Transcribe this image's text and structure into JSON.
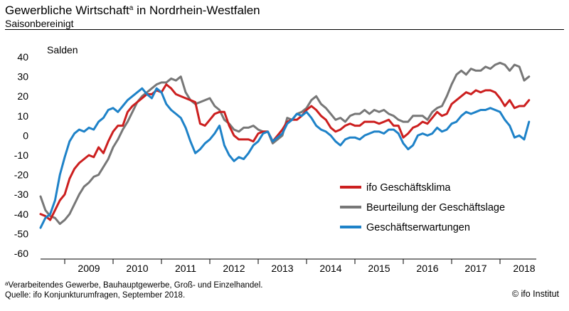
{
  "header": {
    "title": "Gewerbliche Wirtschaft",
    "title_sup": "a",
    "title_suffix": " in Nordrhein-Westfalen",
    "subtitle": "Saisonbereinigt"
  },
  "footer": {
    "note_marker": "a",
    "note": "Verarbeitendes Gewerbe, Bauhauptgewerbe, Groß- und Einzelhandel.",
    "source": "Quelle: ifo Konjunkturumfragen, September 2018.",
    "copyright": "© ifo Institut"
  },
  "chart_data": {
    "type": "line",
    "ylabel": "Salden",
    "ylim": [
      -60,
      40
    ],
    "yticks": [
      40,
      30,
      20,
      10,
      0,
      -10,
      -20,
      -30,
      -40,
      -50,
      -60
    ],
    "xlim": [
      2008.5,
      2018.75
    ],
    "xtick_labels": [
      "2009",
      "2010",
      "2011",
      "2012",
      "2013",
      "2014",
      "2015",
      "2016",
      "2017",
      "2018"
    ],
    "grid": false,
    "legend_position": "lower-right",
    "series": [
      {
        "name": "ifo Geschäftsklima",
        "color": "#cc1f1f",
        "points": [
          [
            2008.5,
            -40
          ],
          [
            2008.6,
            -41
          ],
          [
            2008.7,
            -43
          ],
          [
            2008.8,
            -38
          ],
          [
            2008.9,
            -33
          ],
          [
            2009.0,
            -30
          ],
          [
            2009.1,
            -22
          ],
          [
            2009.2,
            -17
          ],
          [
            2009.3,
            -14
          ],
          [
            2009.4,
            -12
          ],
          [
            2009.5,
            -10
          ],
          [
            2009.6,
            -11
          ],
          [
            2009.7,
            -6
          ],
          [
            2009.8,
            -9
          ],
          [
            2009.9,
            -3
          ],
          [
            2010.0,
            2
          ],
          [
            2010.1,
            5
          ],
          [
            2010.2,
            5
          ],
          [
            2010.3,
            12
          ],
          [
            2010.4,
            15
          ],
          [
            2010.5,
            17
          ],
          [
            2010.6,
            19
          ],
          [
            2010.7,
            21
          ],
          [
            2010.8,
            21
          ],
          [
            2010.9,
            23
          ],
          [
            2011.0,
            22
          ],
          [
            2011.1,
            26
          ],
          [
            2011.2,
            24
          ],
          [
            2011.3,
            21
          ],
          [
            2011.4,
            20
          ],
          [
            2011.5,
            19
          ],
          [
            2011.6,
            18
          ],
          [
            2011.7,
            17
          ],
          [
            2011.8,
            6
          ],
          [
            2011.9,
            5
          ],
          [
            2012.0,
            8
          ],
          [
            2012.1,
            11
          ],
          [
            2012.2,
            12
          ],
          [
            2012.3,
            12
          ],
          [
            2012.4,
            5
          ],
          [
            2012.5,
            0
          ],
          [
            2012.6,
            -2
          ],
          [
            2012.7,
            -2
          ],
          [
            2012.8,
            -2
          ],
          [
            2012.9,
            -3
          ],
          [
            2013.0,
            1
          ],
          [
            2013.1,
            2
          ],
          [
            2013.2,
            2
          ],
          [
            2013.3,
            -3
          ],
          [
            2013.4,
            0
          ],
          [
            2013.5,
            3
          ],
          [
            2013.6,
            7
          ],
          [
            2013.7,
            8
          ],
          [
            2013.8,
            8
          ],
          [
            2013.9,
            10
          ],
          [
            2014.0,
            13
          ],
          [
            2014.1,
            15
          ],
          [
            2014.2,
            13
          ],
          [
            2014.3,
            10
          ],
          [
            2014.4,
            8
          ],
          [
            2014.5,
            4
          ],
          [
            2014.6,
            2
          ],
          [
            2014.7,
            3
          ],
          [
            2014.8,
            5
          ],
          [
            2014.9,
            6
          ],
          [
            2015.0,
            5
          ],
          [
            2015.1,
            5
          ],
          [
            2015.2,
            7
          ],
          [
            2015.3,
            7
          ],
          [
            2015.4,
            7
          ],
          [
            2015.5,
            6
          ],
          [
            2015.6,
            7
          ],
          [
            2015.7,
            8
          ],
          [
            2015.8,
            5
          ],
          [
            2015.9,
            5
          ],
          [
            2016.0,
            -1
          ],
          [
            2016.1,
            1
          ],
          [
            2016.2,
            4
          ],
          [
            2016.3,
            5
          ],
          [
            2016.4,
            7
          ],
          [
            2016.5,
            6
          ],
          [
            2016.6,
            9
          ],
          [
            2016.7,
            12
          ],
          [
            2016.8,
            10
          ],
          [
            2016.9,
            11
          ],
          [
            2017.0,
            16
          ],
          [
            2017.1,
            18
          ],
          [
            2017.2,
            20
          ],
          [
            2017.3,
            22
          ],
          [
            2017.4,
            21
          ],
          [
            2017.5,
            23
          ],
          [
            2017.6,
            22
          ],
          [
            2017.7,
            23
          ],
          [
            2017.8,
            23
          ],
          [
            2017.9,
            22
          ],
          [
            2018.0,
            19
          ],
          [
            2018.1,
            15
          ],
          [
            2018.2,
            18
          ],
          [
            2018.3,
            14
          ],
          [
            2018.4,
            15
          ],
          [
            2018.5,
            15
          ],
          [
            2018.6,
            18
          ]
        ]
      },
      {
        "name": "Beurteilung der Geschäftslage",
        "color": "#777777",
        "points": [
          [
            2008.5,
            -31
          ],
          [
            2008.6,
            -38
          ],
          [
            2008.7,
            -41
          ],
          [
            2008.8,
            -42
          ],
          [
            2008.9,
            -45
          ],
          [
            2009.0,
            -43
          ],
          [
            2009.1,
            -40
          ],
          [
            2009.2,
            -35
          ],
          [
            2009.3,
            -30
          ],
          [
            2009.4,
            -26
          ],
          [
            2009.5,
            -24
          ],
          [
            2009.6,
            -21
          ],
          [
            2009.7,
            -20
          ],
          [
            2009.8,
            -16
          ],
          [
            2009.9,
            -12
          ],
          [
            2010.0,
            -6
          ],
          [
            2010.1,
            -2
          ],
          [
            2010.2,
            3
          ],
          [
            2010.3,
            7
          ],
          [
            2010.4,
            12
          ],
          [
            2010.5,
            17
          ],
          [
            2010.6,
            20
          ],
          [
            2010.7,
            22
          ],
          [
            2010.8,
            24
          ],
          [
            2010.9,
            26
          ],
          [
            2011.0,
            27
          ],
          [
            2011.1,
            27
          ],
          [
            2011.2,
            29
          ],
          [
            2011.3,
            28
          ],
          [
            2011.4,
            30
          ],
          [
            2011.5,
            22
          ],
          [
            2011.6,
            18
          ],
          [
            2011.7,
            16
          ],
          [
            2011.8,
            17
          ],
          [
            2011.9,
            18
          ],
          [
            2012.0,
            19
          ],
          [
            2012.1,
            15
          ],
          [
            2012.2,
            13
          ],
          [
            2012.3,
            8
          ],
          [
            2012.4,
            6
          ],
          [
            2012.5,
            3
          ],
          [
            2012.6,
            2
          ],
          [
            2012.7,
            4
          ],
          [
            2012.8,
            4
          ],
          [
            2012.9,
            5
          ],
          [
            2013.0,
            3
          ],
          [
            2013.1,
            2
          ],
          [
            2013.2,
            2
          ],
          [
            2013.3,
            -4
          ],
          [
            2013.4,
            -2
          ],
          [
            2013.5,
            0
          ],
          [
            2013.6,
            9
          ],
          [
            2013.7,
            8
          ],
          [
            2013.8,
            11
          ],
          [
            2013.9,
            12
          ],
          [
            2014.0,
            14
          ],
          [
            2014.1,
            18
          ],
          [
            2014.2,
            20
          ],
          [
            2014.3,
            16
          ],
          [
            2014.4,
            14
          ],
          [
            2014.5,
            11
          ],
          [
            2014.6,
            8
          ],
          [
            2014.7,
            9
          ],
          [
            2014.8,
            7
          ],
          [
            2014.9,
            10
          ],
          [
            2015.0,
            11
          ],
          [
            2015.1,
            11
          ],
          [
            2015.2,
            13
          ],
          [
            2015.3,
            11
          ],
          [
            2015.4,
            13
          ],
          [
            2015.5,
            12
          ],
          [
            2015.6,
            13
          ],
          [
            2015.7,
            11
          ],
          [
            2015.8,
            10
          ],
          [
            2015.9,
            8
          ],
          [
            2016.0,
            7
          ],
          [
            2016.1,
            7
          ],
          [
            2016.2,
            10
          ],
          [
            2016.3,
            10
          ],
          [
            2016.4,
            10
          ],
          [
            2016.5,
            8
          ],
          [
            2016.6,
            12
          ],
          [
            2016.7,
            14
          ],
          [
            2016.8,
            15
          ],
          [
            2016.9,
            20
          ],
          [
            2017.0,
            26
          ],
          [
            2017.1,
            31
          ],
          [
            2017.2,
            33
          ],
          [
            2017.3,
            31
          ],
          [
            2017.4,
            34
          ],
          [
            2017.5,
            33
          ],
          [
            2017.6,
            33
          ],
          [
            2017.7,
            35
          ],
          [
            2017.8,
            34
          ],
          [
            2017.9,
            36
          ],
          [
            2018.0,
            37
          ],
          [
            2018.1,
            36
          ],
          [
            2018.2,
            33
          ],
          [
            2018.3,
            36
          ],
          [
            2018.4,
            35
          ],
          [
            2018.5,
            28
          ],
          [
            2018.6,
            30
          ]
        ]
      },
      {
        "name": "Geschäftserwartungen",
        "color": "#1e82c8",
        "points": [
          [
            2008.5,
            -47
          ],
          [
            2008.6,
            -42
          ],
          [
            2008.7,
            -40
          ],
          [
            2008.8,
            -33
          ],
          [
            2008.9,
            -20
          ],
          [
            2009.0,
            -11
          ],
          [
            2009.1,
            -3
          ],
          [
            2009.2,
            1
          ],
          [
            2009.3,
            3
          ],
          [
            2009.4,
            2
          ],
          [
            2009.5,
            4
          ],
          [
            2009.6,
            3
          ],
          [
            2009.7,
            7
          ],
          [
            2009.8,
            9
          ],
          [
            2009.9,
            13
          ],
          [
            2010.0,
            14
          ],
          [
            2010.1,
            12
          ],
          [
            2010.2,
            15
          ],
          [
            2010.3,
            18
          ],
          [
            2010.4,
            20
          ],
          [
            2010.5,
            22
          ],
          [
            2010.6,
            24
          ],
          [
            2010.7,
            21
          ],
          [
            2010.8,
            19
          ],
          [
            2010.9,
            24
          ],
          [
            2011.0,
            22
          ],
          [
            2011.1,
            16
          ],
          [
            2011.2,
            13
          ],
          [
            2011.3,
            11
          ],
          [
            2011.4,
            9
          ],
          [
            2011.5,
            4
          ],
          [
            2011.6,
            -3
          ],
          [
            2011.7,
            -9
          ],
          [
            2011.8,
            -7
          ],
          [
            2011.9,
            -4
          ],
          [
            2012.0,
            -2
          ],
          [
            2012.1,
            1
          ],
          [
            2012.2,
            5
          ],
          [
            2012.3,
            -5
          ],
          [
            2012.4,
            -10
          ],
          [
            2012.5,
            -13
          ],
          [
            2012.6,
            -11
          ],
          [
            2012.7,
            -12
          ],
          [
            2012.8,
            -9
          ],
          [
            2012.9,
            -5
          ],
          [
            2013.0,
            -3
          ],
          [
            2013.1,
            1
          ],
          [
            2013.2,
            2
          ],
          [
            2013.3,
            -3
          ],
          [
            2013.4,
            -1
          ],
          [
            2013.5,
            1
          ],
          [
            2013.6,
            6
          ],
          [
            2013.7,
            8
          ],
          [
            2013.8,
            11
          ],
          [
            2013.9,
            10
          ],
          [
            2014.0,
            12
          ],
          [
            2014.1,
            9
          ],
          [
            2014.2,
            5
          ],
          [
            2014.3,
            3
          ],
          [
            2014.4,
            2
          ],
          [
            2014.5,
            0
          ],
          [
            2014.6,
            -3
          ],
          [
            2014.7,
            -5
          ],
          [
            2014.8,
            -2
          ],
          [
            2014.9,
            -1
          ],
          [
            2015.0,
            -1
          ],
          [
            2015.1,
            -2
          ],
          [
            2015.2,
            0
          ],
          [
            2015.3,
            1
          ],
          [
            2015.4,
            2
          ],
          [
            2015.5,
            2
          ],
          [
            2015.6,
            1
          ],
          [
            2015.7,
            3
          ],
          [
            2015.8,
            3
          ],
          [
            2015.9,
            1
          ],
          [
            2016.0,
            -4
          ],
          [
            2016.1,
            -7
          ],
          [
            2016.2,
            -5
          ],
          [
            2016.3,
            0
          ],
          [
            2016.4,
            1
          ],
          [
            2016.5,
            0
          ],
          [
            2016.6,
            1
          ],
          [
            2016.7,
            4
          ],
          [
            2016.8,
            2
          ],
          [
            2016.9,
            3
          ],
          [
            2017.0,
            6
          ],
          [
            2017.1,
            7
          ],
          [
            2017.2,
            10
          ],
          [
            2017.3,
            12
          ],
          [
            2017.4,
            11
          ],
          [
            2017.5,
            12
          ],
          [
            2017.6,
            13
          ],
          [
            2017.7,
            13
          ],
          [
            2017.8,
            14
          ],
          [
            2017.9,
            13
          ],
          [
            2018.0,
            12
          ],
          [
            2018.1,
            8
          ],
          [
            2018.2,
            5
          ],
          [
            2018.3,
            -1
          ],
          [
            2018.4,
            0
          ],
          [
            2018.5,
            -2
          ],
          [
            2018.6,
            7
          ]
        ]
      }
    ]
  }
}
